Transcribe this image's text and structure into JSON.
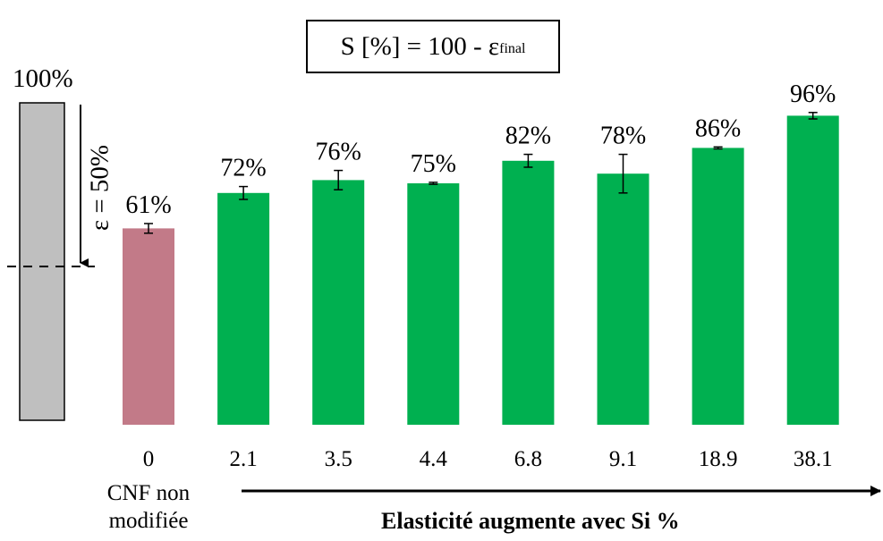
{
  "chart_data": {
    "type": "bar",
    "title": "",
    "xlabel": "Elasticité augmente avec Si %",
    "ylabel": "",
    "ylim": [
      0,
      100
    ],
    "grid": false,
    "categories": [
      "0",
      "2.1",
      "3.5",
      "4.4",
      "6.8",
      "9.1",
      "18.9",
      "38.1"
    ],
    "values": [
      61,
      72,
      76,
      75,
      82,
      78,
      86,
      96
    ],
    "value_labels": [
      "61%",
      "72%",
      "76%",
      "75%",
      "82%",
      "78%",
      "86%",
      "96%"
    ],
    "error": [
      1.5,
      2,
      3,
      0.3,
      2,
      6,
      0.3,
      1
    ],
    "bar_colors": [
      "#C27A88",
      "#00B050",
      "#00B050",
      "#00B050",
      "#00B050",
      "#00B050",
      "#00B050",
      "#00B050"
    ],
    "first_category_caption": [
      "CNF non",
      "modifiée"
    ],
    "trend_arrow": "right",
    "reference_column": {
      "height_label": "100%",
      "strain_label": "ε = 50%",
      "color": "#BFBFBF"
    }
  },
  "formula": {
    "main": "S [%] = 100 - ε",
    "subscript": "final"
  }
}
